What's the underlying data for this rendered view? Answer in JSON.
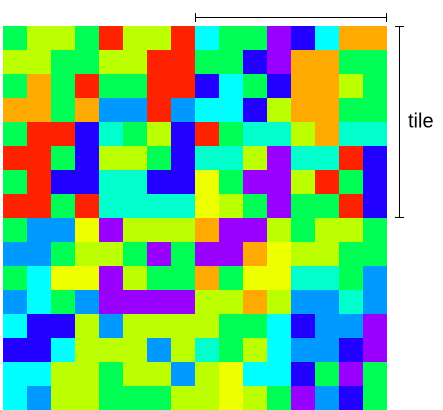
{
  "label": "tile",
  "grid": {
    "rows": [
      [
        "#00ff55",
        "#bbff00",
        "#bbff00",
        "#00ff55",
        "#ff2200",
        "#bbff00",
        "#bbff00",
        "#ff2200",
        "#00ffff",
        "#00ff55",
        "#00ff55",
        "#9900ff",
        "#2200ff",
        "#00ffff",
        "#ffaa00",
        "#ffaa00"
      ],
      [
        "#bbff00",
        "#bbff00",
        "#00ff55",
        "#00ff55",
        "#bbff00",
        "#bbff00",
        "#ff2200",
        "#ff2200",
        "#00ff55",
        "#00ff55",
        "#2200ff",
        "#9900ff",
        "#ffaa00",
        "#ffaa00",
        "#00ff55",
        "#00ff55"
      ],
      [
        "#00ff55",
        "#ffaa00",
        "#00ff55",
        "#ff2200",
        "#00ff55",
        "#00ff55",
        "#ff2200",
        "#ff2200",
        "#2200ff",
        "#00ffff",
        "#00ff55",
        "#2200ff",
        "#ffaa00",
        "#ffaa00",
        "#bbff00",
        "#00ff55"
      ],
      [
        "#ffaa00",
        "#ffaa00",
        "#00ff55",
        "#ffaa00",
        "#0099ff",
        "#0099ff",
        "#ff2200",
        "#0099ff",
        "#00ffff",
        "#00ffff",
        "#2200ff",
        "#bbff00",
        "#ffaa00",
        "#ffaa00",
        "#00ff55",
        "#00ff55"
      ],
      [
        "#00ff55",
        "#ff2200",
        "#ff2200",
        "#2200ff",
        "#00ffcc",
        "#00ff55",
        "#bbff00",
        "#2200ff",
        "#ff2200",
        "#00ff55",
        "#00ffcc",
        "#00ffcc",
        "#bbff00",
        "#ffaa00",
        "#00ffcc",
        "#00ffcc"
      ],
      [
        "#ff2200",
        "#ff2200",
        "#00ff55",
        "#2200ff",
        "#bbff00",
        "#bbff00",
        "#00ff55",
        "#2200ff",
        "#00ffcc",
        "#00ffcc",
        "#bbff00",
        "#9900ff",
        "#00ffcc",
        "#00ffcc",
        "#ff2200",
        "#2200ff"
      ],
      [
        "#00ff55",
        "#ff2200",
        "#2200ff",
        "#2200ff",
        "#00ffcc",
        "#00ffcc",
        "#2200ff",
        "#2200ff",
        "#eeff00",
        "#00ff55",
        "#9900ff",
        "#9900ff",
        "#bbff00",
        "#ff2200",
        "#00ff55",
        "#2200ff"
      ],
      [
        "#ff2200",
        "#ff2200",
        "#00ff55",
        "#ff2200",
        "#00ffcc",
        "#00ffcc",
        "#00ffcc",
        "#00ffcc",
        "#eeff00",
        "#bbff00",
        "#00ff55",
        "#9900ff",
        "#00ff55",
        "#00ff55",
        "#ff2200",
        "#2200ff"
      ],
      [
        "#00ff55",
        "#0099ff",
        "#0099ff",
        "#eeff00",
        "#9900ff",
        "#bbff00",
        "#bbff00",
        "#bbff00",
        "#ffaa00",
        "#9900ff",
        "#9900ff",
        "#bbff00",
        "#00ff55",
        "#bbff00",
        "#bbff00",
        "#00ff55"
      ],
      [
        "#0099ff",
        "#0099ff",
        "#00ff55",
        "#bbff00",
        "#bbff00",
        "#00ff55",
        "#9900ff",
        "#00ff55",
        "#9900ff",
        "#9900ff",
        "#ffaa00",
        "#eeff00",
        "#bbff00",
        "#bbff00",
        "#00ff55",
        "#00ff55"
      ],
      [
        "#00ff55",
        "#00ffff",
        "#eeff00",
        "#eeff00",
        "#9900ff",
        "#bbff00",
        "#00ff55",
        "#00ff55",
        "#ffaa00",
        "#00ff55",
        "#eeff00",
        "#eeff00",
        "#00ffcc",
        "#00ffcc",
        "#00ff55",
        "#0099ff"
      ],
      [
        "#0099ff",
        "#00ffff",
        "#00ff55",
        "#0099ff",
        "#9900ff",
        "#9900ff",
        "#9900ff",
        "#9900ff",
        "#bbff00",
        "#bbff00",
        "#ffaa00",
        "#bbff00",
        "#0099ff",
        "#0099ff",
        "#00ffcc",
        "#0099ff"
      ],
      [
        "#00ffff",
        "#2200ff",
        "#2200ff",
        "#bbff00",
        "#0099ff",
        "#bbff00",
        "#bbff00",
        "#bbff00",
        "#bbff00",
        "#00ff55",
        "#00ff55",
        "#00ffff",
        "#2200ff",
        "#0099ff",
        "#0099ff",
        "#9900ff"
      ],
      [
        "#2200ff",
        "#2200ff",
        "#00ffff",
        "#bbff00",
        "#bbff00",
        "#bbff00",
        "#0099ff",
        "#bbff00",
        "#00ffcc",
        "#00ff55",
        "#bbff00",
        "#00ffff",
        "#0099ff",
        "#0099ff",
        "#2200ff",
        "#9900ff"
      ],
      [
        "#00ffff",
        "#00ffff",
        "#bbff00",
        "#bbff00",
        "#00ff55",
        "#bbff00",
        "#bbff00",
        "#0099ff",
        "#bbff00",
        "#eeff00",
        "#00ffff",
        "#00ffff",
        "#2200ff",
        "#00ff55",
        "#9900ff",
        "#00ff55"
      ],
      [
        "#00ffff",
        "#0099ff",
        "#bbff00",
        "#bbff00",
        "#00ff55",
        "#00ff55",
        "#00ff55",
        "#bbff00",
        "#bbff00",
        "#eeff00",
        "#bbff00",
        "#00ff55",
        "#9900ff",
        "#0099ff",
        "#2200ff",
        "#00ff55"
      ]
    ]
  }
}
